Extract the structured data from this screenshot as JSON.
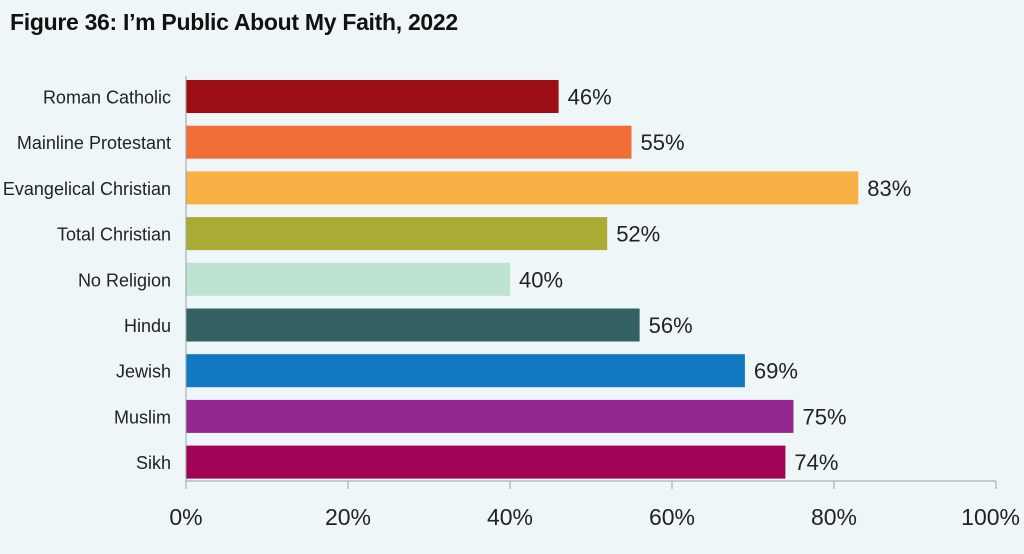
{
  "chart_data": {
    "type": "bar",
    "orientation": "horizontal",
    "title": "Figure 36: I’m Public About My Faith, 2022",
    "categories": [
      "Roman Catholic",
      "Mainline Protestant",
      "Evangelical Christian",
      "Total Christian",
      "No Religion",
      "Hindu",
      "Jewish",
      "Muslim",
      "Sikh"
    ],
    "values": [
      46,
      55,
      83,
      52,
      40,
      56,
      69,
      75,
      74
    ],
    "value_labels": [
      "46%",
      "55%",
      "83%",
      "52%",
      "40%",
      "56%",
      "69%",
      "75%",
      "74%"
    ],
    "colors": [
      "#9c0d14",
      "#f06e35",
      "#f9b145",
      "#aaab35",
      "#bfe3d3",
      "#346161",
      "#1178c2",
      "#932890",
      "#a10357"
    ],
    "xlim": [
      0,
      100
    ],
    "xticks": [
      "0%",
      "20%",
      "40%",
      "60%",
      "80%",
      "100%"
    ],
    "grid": false,
    "xlabel": "",
    "ylabel": ""
  }
}
